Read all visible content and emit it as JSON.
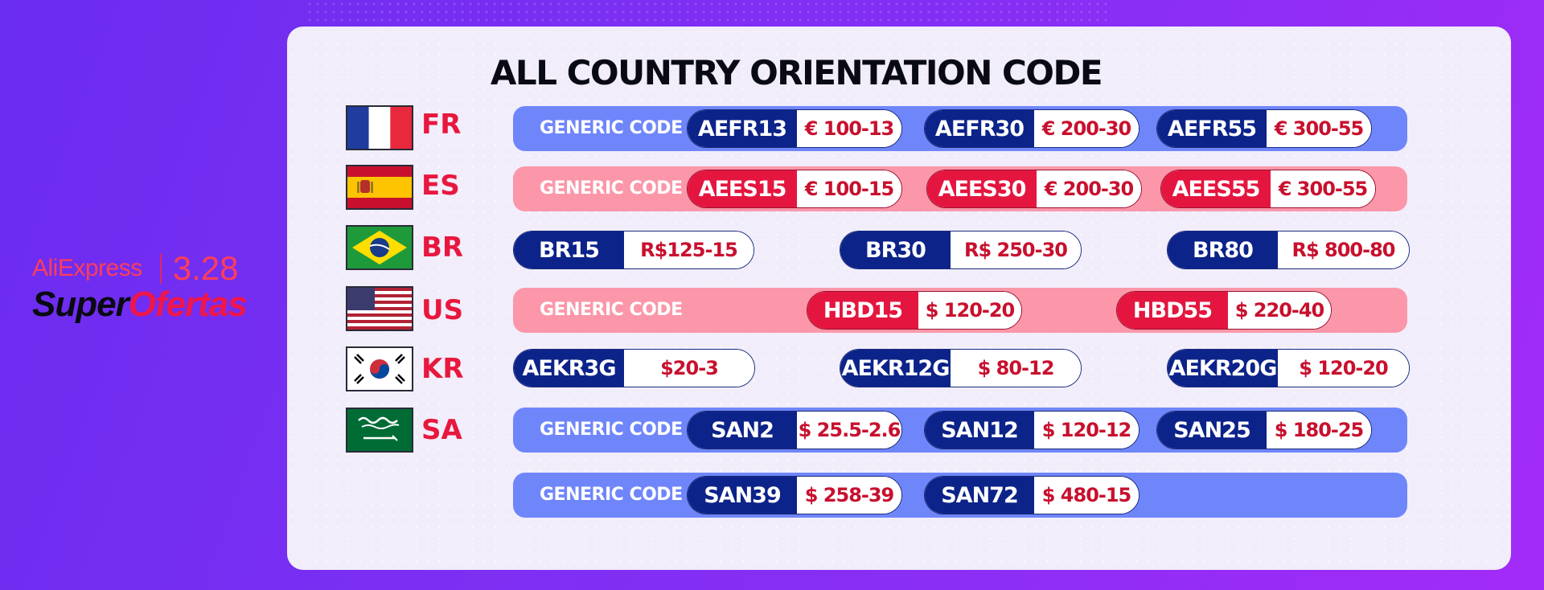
{
  "branding": {
    "aliexpress": "AliExpress",
    "date": "3.28",
    "super": "Super",
    "ofertas": "Ofertas"
  },
  "title": "ALL COUNTRY ORIENTATION CODE",
  "generic_label": "GENERIC CODE",
  "colors": {
    "background_gradient": [
      "#6a2cf0",
      "#a32bf7"
    ],
    "panel": "#f1edfb",
    "blue_bar": "#6f86fb",
    "pink_bar": "#fb97a9",
    "navy_code": "#0c2389",
    "red_code": "#e4163f",
    "value_text": "#c8102e",
    "country_code": "#e8173e"
  },
  "countries": [
    {
      "code": "FR",
      "flag": "france-flag",
      "bar": "blue",
      "generic": true,
      "coupons": [
        {
          "code": "AEFR13",
          "value": "€ 100-13",
          "style": "navy"
        },
        {
          "code": "AEFR30",
          "value": "€ 200-30",
          "style": "navy"
        },
        {
          "code": "AEFR55",
          "value": "€ 300-55",
          "style": "navy"
        }
      ]
    },
    {
      "code": "ES",
      "flag": "spain-flag",
      "bar": "pink",
      "generic": true,
      "coupons": [
        {
          "code": "AEES15",
          "value": "€ 100-15",
          "style": "red"
        },
        {
          "code": "AEES30",
          "value": "€ 200-30",
          "style": "red"
        },
        {
          "code": "AEES55",
          "value": "€ 300-55",
          "style": "red"
        }
      ]
    },
    {
      "code": "BR",
      "flag": "brazil-flag",
      "bar": "none",
      "generic": false,
      "coupons": [
        {
          "code": "BR15",
          "value": "R$125-15",
          "style": "navy"
        },
        {
          "code": "BR30",
          "value": "R$ 250-30",
          "style": "navy"
        },
        {
          "code": "BR80",
          "value": "R$ 800-80",
          "style": "navy"
        }
      ]
    },
    {
      "code": "US",
      "flag": "usa-flag",
      "bar": "pink",
      "generic": true,
      "coupons": [
        {
          "code": "HBD15",
          "value": "$ 120-20",
          "style": "red"
        },
        {
          "code": "HBD55",
          "value": "$ 220-40",
          "style": "red"
        }
      ]
    },
    {
      "code": "KR",
      "flag": "south-korea-flag",
      "bar": "none",
      "generic": false,
      "coupons": [
        {
          "code": "AEKR3G",
          "value": "$20-3",
          "style": "navy"
        },
        {
          "code": "AEKR12G",
          "value": "$ 80-12",
          "style": "navy"
        },
        {
          "code": "AEKR20G",
          "value": "$ 120-20",
          "style": "navy"
        }
      ]
    },
    {
      "code": "SA",
      "flag": "saudi-arabia-flag",
      "bar": "blue",
      "generic": true,
      "coupons": [
        {
          "code": "SAN2",
          "value": "$ 25.5-2.6",
          "style": "navy"
        },
        {
          "code": "SAN12",
          "value": "$ 120-12",
          "style": "navy"
        },
        {
          "code": "SAN25",
          "value": "$ 180-25",
          "style": "navy"
        }
      ]
    }
  ],
  "extra_row": {
    "bar": "blue",
    "generic": true,
    "coupons": [
      {
        "code": "SAN39",
        "value": "$ 258-39",
        "style": "navy"
      },
      {
        "code": "SAN72",
        "value": "$ 480-15",
        "style": "navy"
      }
    ]
  }
}
